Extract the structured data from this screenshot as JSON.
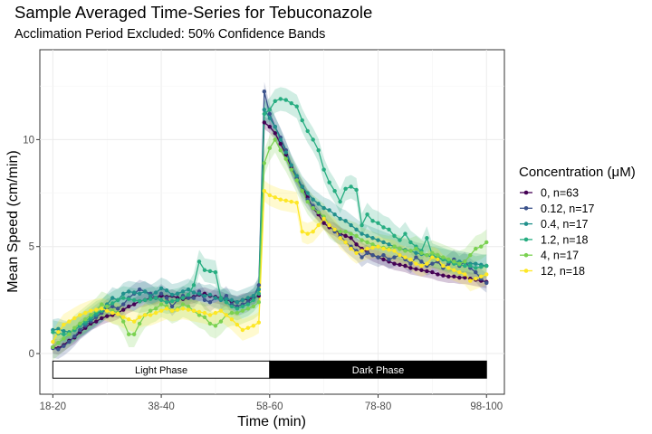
{
  "chart_data": {
    "type": "line",
    "title": "Sample Averaged Time-Series for Tebuconazole",
    "subtitle": "Acclimation Period Excluded: 50% Confidence Bands",
    "xlabel": "Time (min)",
    "ylabel": "Mean Speed (cm/min)",
    "x_tick_labels": [
      "18-20",
      "38-40",
      "58-60",
      "78-80",
      "98-100"
    ],
    "x_tick_values": [
      19,
      39,
      59,
      79,
      99
    ],
    "y_ticks": [
      0,
      5,
      10
    ],
    "xlim": [
      16.6,
      102.3
    ],
    "ylim": [
      -1.9,
      14.2
    ],
    "x": [
      19,
      20,
      21,
      22,
      23,
      24,
      25,
      26,
      27,
      28,
      29,
      30,
      31,
      32,
      33,
      34,
      35,
      36,
      37,
      38,
      39,
      40,
      41,
      42,
      43,
      44,
      45,
      46,
      47,
      48,
      49,
      50,
      51,
      52,
      53,
      54,
      55,
      56,
      57,
      58,
      59,
      60,
      61,
      62,
      63,
      64,
      65,
      66,
      67,
      68,
      69,
      70,
      71,
      72,
      73,
      74,
      75,
      76,
      77,
      78,
      79,
      80,
      81,
      82,
      83,
      84,
      85,
      86,
      87,
      88,
      89,
      90,
      91,
      92,
      93,
      94,
      95,
      96,
      97,
      98,
      99
    ],
    "legend_title": "Concentration (μM)",
    "legend_position": "right",
    "grid": true,
    "band_label": "50% Confidence Bands",
    "phases": [
      {
        "label": "Light Phase",
        "x_start": 19,
        "x_end": 59,
        "fill": "#ffffff",
        "text_color": "#000000"
      },
      {
        "label": "Dark Phase",
        "x_start": 59,
        "x_end": 99,
        "fill": "#000000",
        "text_color": "#ffffff"
      }
    ],
    "phase_band_y": [
      -1.15,
      -0.35
    ],
    "series": [
      {
        "name": "0, n=63",
        "color": "#440154",
        "band_halfwidth": 0.3,
        "values": [
          0.3,
          0.25,
          0.4,
          0.6,
          0.75,
          1.0,
          1.2,
          1.4,
          1.5,
          1.65,
          1.75,
          1.8,
          1.9,
          2.05,
          2.2,
          2.3,
          2.45,
          2.5,
          2.6,
          2.6,
          2.7,
          2.65,
          2.7,
          2.6,
          2.55,
          2.6,
          2.65,
          2.75,
          2.8,
          2.7,
          2.65,
          2.6,
          2.5,
          2.45,
          2.4,
          2.5,
          2.55,
          2.6,
          2.7,
          10.8,
          10.6,
          10.3,
          9.8,
          9.3,
          8.7,
          8.2,
          7.8,
          7.3,
          6.8,
          6.5,
          6.1,
          5.9,
          5.8,
          5.6,
          5.5,
          5.4,
          5.1,
          4.9,
          4.75,
          4.6,
          4.5,
          4.4,
          4.3,
          4.2,
          4.15,
          4.1,
          4.0,
          3.95,
          3.9,
          3.85,
          3.8,
          3.7,
          3.65,
          3.6,
          3.6,
          3.55,
          3.55,
          3.5,
          3.45,
          3.4,
          3.35
        ]
      },
      {
        "name": "0.12, n=17",
        "color": "#3b528b",
        "band_halfwidth": 0.45,
        "values": [
          0.25,
          0.2,
          0.35,
          0.55,
          0.8,
          1.1,
          1.3,
          1.5,
          1.7,
          1.9,
          2.1,
          2.2,
          2.1,
          2.3,
          2.6,
          2.8,
          3.0,
          2.9,
          2.8,
          2.6,
          2.8,
          2.6,
          2.2,
          2.5,
          2.7,
          2.6,
          2.6,
          2.9,
          2.5,
          2.4,
          2.6,
          2.5,
          2.7,
          2.3,
          2.2,
          2.3,
          2.4,
          2.6,
          3.2,
          12.25,
          11.2,
          10.6,
          10.1,
          9.5,
          8.8,
          8.2,
          7.6,
          7.2,
          6.9,
          6.6,
          6.3,
          6.0,
          5.7,
          5.5,
          5.2,
          5.0,
          4.8,
          4.5,
          4.7,
          4.6,
          4.5,
          4.6,
          4.4,
          4.5,
          4.6,
          4.4,
          4.2,
          4.5,
          4.3,
          4.1,
          4.2,
          4.3,
          4.0,
          4.2,
          4.4,
          4.1,
          4.3,
          4.0,
          3.8,
          3.5,
          3.3
        ]
      },
      {
        "name": "0.4, n=17",
        "color": "#21908c",
        "band_halfwidth": 0.5,
        "values": [
          1.1,
          1.15,
          1.05,
          1.0,
          1.1,
          1.3,
          1.4,
          1.6,
          1.8,
          2.0,
          2.3,
          2.6,
          2.5,
          2.8,
          2.9,
          2.85,
          2.8,
          2.9,
          2.7,
          2.85,
          3.05,
          2.95,
          2.75,
          2.8,
          2.9,
          3.0,
          2.85,
          2.8,
          2.7,
          2.75,
          2.6,
          2.5,
          2.55,
          2.5,
          2.4,
          2.5,
          2.6,
          2.7,
          3.0,
          11.4,
          11.0,
          10.6,
          10.0,
          9.4,
          8.8,
          8.3,
          7.8,
          7.5,
          7.2,
          7.0,
          6.8,
          6.7,
          6.5,
          6.3,
          6.2,
          6.0,
          5.8,
          5.6,
          5.5,
          5.4,
          5.3,
          5.2,
          5.1,
          5.0,
          4.9,
          4.85,
          4.8,
          4.7,
          4.65,
          4.6,
          4.5,
          4.45,
          4.4,
          4.35,
          4.3,
          4.3,
          4.25,
          4.2,
          4.2,
          4.15,
          4.1
        ]
      },
      {
        "name": "1.2, n=18",
        "color": "#27ad81",
        "band_halfwidth": 0.55,
        "values": [
          1.0,
          0.95,
          0.9,
          0.95,
          1.1,
          1.3,
          1.5,
          1.7,
          1.9,
          2.0,
          2.2,
          2.35,
          2.5,
          2.6,
          2.55,
          2.5,
          2.45,
          2.5,
          2.55,
          2.6,
          2.5,
          2.4,
          2.45,
          2.5,
          2.6,
          2.75,
          3.2,
          4.3,
          3.9,
          3.85,
          3.8,
          2.6,
          2.4,
          2.2,
          2.1,
          2.2,
          2.3,
          2.5,
          2.8,
          11.2,
          11.4,
          11.8,
          11.9,
          11.85,
          11.7,
          11.55,
          10.9,
          10.4,
          10.0,
          9.5,
          8.6,
          8.0,
          7.6,
          7.1,
          7.7,
          7.8,
          7.65,
          6.0,
          6.5,
          6.2,
          6.1,
          5.9,
          5.8,
          5.5,
          5.3,
          5.6,
          5.2,
          5.0,
          4.8,
          5.4,
          4.6,
          4.5,
          4.4,
          4.3,
          4.2,
          4.15,
          4.1,
          4.1,
          4.0,
          4.05,
          4.1
        ]
      },
      {
        "name": "4, n=17",
        "color": "#7ad151",
        "band_halfwidth": 0.6,
        "values": [
          0.3,
          0.5,
          0.7,
          0.9,
          1.2,
          1.4,
          1.6,
          1.8,
          2.0,
          2.3,
          2.2,
          2.0,
          1.9,
          1.5,
          0.9,
          0.9,
          1.4,
          1.8,
          2.0,
          2.1,
          2.3,
          2.2,
          2.0,
          2.1,
          2.3,
          2.2,
          2.0,
          1.8,
          1.7,
          1.4,
          1.3,
          1.5,
          1.8,
          1.9,
          1.9,
          2.0,
          2.1,
          2.2,
          2.4,
          8.9,
          9.6,
          10.0,
          9.5,
          9.1,
          8.6,
          8.1,
          7.6,
          7.1,
          6.8,
          6.6,
          6.4,
          6.0,
          5.8,
          5.7,
          5.7,
          5.6,
          5.5,
          5.3,
          5.2,
          5.1,
          5.0,
          4.95,
          4.9,
          5.0,
          4.9,
          4.8,
          4.8,
          4.9,
          4.7,
          4.6,
          4.7,
          4.6,
          4.5,
          4.4,
          4.3,
          4.2,
          4.3,
          4.6,
          4.9,
          5.0,
          5.2
        ]
      },
      {
        "name": "12, n=18",
        "color": "#fde725",
        "band_halfwidth": 0.5,
        "values": [
          0.55,
          1.0,
          1.35,
          1.5,
          1.65,
          1.8,
          1.9,
          2.0,
          2.05,
          2.1,
          2.0,
          1.9,
          1.85,
          1.7,
          1.6,
          1.5,
          1.7,
          1.8,
          1.8,
          1.9,
          2.0,
          2.1,
          2.0,
          2.05,
          2.1,
          2.05,
          2.0,
          1.95,
          1.9,
          1.8,
          1.9,
          2.0,
          1.8,
          1.6,
          1.35,
          1.1,
          1.2,
          1.3,
          1.45,
          7.6,
          7.4,
          7.3,
          7.2,
          7.15,
          7.1,
          7.05,
          5.7,
          5.6,
          5.7,
          6.0,
          6.3,
          6.0,
          5.8,
          5.4,
          5.2,
          4.9,
          4.7,
          4.8,
          4.9,
          4.95,
          5.0,
          4.9,
          4.85,
          4.8,
          4.6,
          4.5,
          4.4,
          4.2,
          4.1,
          4.2,
          4.5,
          4.4,
          4.1,
          4.0,
          3.9,
          3.8,
          3.7,
          3.4,
          3.5,
          3.6,
          3.7
        ]
      }
    ]
  }
}
